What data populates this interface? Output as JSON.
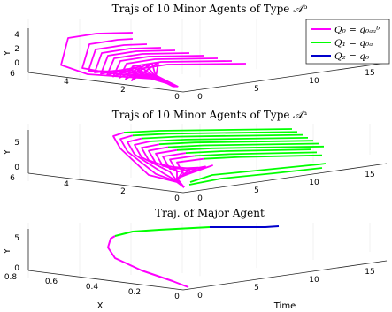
{
  "colors": {
    "Q0": "#ff00ff",
    "Q1": "#00ff00",
    "Q2": "#0000cc",
    "axis": "#262626",
    "grid": "#e6e6e6"
  },
  "legend": {
    "entries": [
      {
        "label": "Q₀ = q₀ₐₐᵇ",
        "mode": "Q0"
      },
      {
        "label": "Q₁ = q₀ₐ",
        "mode": "Q1"
      },
      {
        "label": "Q₂ = q₀",
        "mode": "Q2"
      }
    ],
    "placement": "top-right"
  },
  "chart_data": [
    {
      "type": "line",
      "title": "Trajs of 10 Minor Agents of Type 𝒜ᵇ",
      "xlabel": "",
      "ylabel": "Y",
      "zlabel": "",
      "x_ticks": [
        "6",
        "4",
        "2",
        "0"
      ],
      "y_ticks": [
        "0",
        "2",
        "4"
      ],
      "t_ticks": [
        "0",
        "5",
        "10",
        "15"
      ],
      "xlim": [
        0,
        6
      ],
      "ylim": [
        0,
        4.5
      ],
      "tlim": [
        0,
        17
      ],
      "series_count": 10,
      "mode_sequence": [
        "Q0"
      ]
    },
    {
      "type": "line",
      "title": "Trajs of 10 Minor Agents of Type 𝒜ᵃ",
      "xlabel": "",
      "ylabel": "Y",
      "zlabel": "",
      "x_ticks": [
        "6",
        "4",
        "2",
        "0"
      ],
      "y_ticks": [
        "0",
        "5"
      ],
      "t_ticks": [
        "0",
        "5",
        "10",
        "15"
      ],
      "xlim": [
        0,
        6
      ],
      "ylim": [
        0,
        8
      ],
      "tlim": [
        0,
        17
      ],
      "series_count": 10,
      "mode_sequence": [
        "Q0",
        "Q1"
      ]
    },
    {
      "type": "line",
      "title": "Traj. of Major Agent",
      "xlabel": "X",
      "ylabel": "Y",
      "zlabel": "Time",
      "x_ticks": [
        "0.8",
        "0.6",
        "0.4",
        "0.2",
        "0"
      ],
      "y_ticks": [
        "0",
        "5"
      ],
      "t_ticks": [
        "0",
        "5",
        "10",
        "15"
      ],
      "xlim": [
        0,
        0.8
      ],
      "ylim": [
        0,
        6
      ],
      "tlim": [
        0,
        17
      ],
      "series_count": 1,
      "mode_sequence": [
        "Q0",
        "Q1",
        "Q2"
      ]
    }
  ]
}
